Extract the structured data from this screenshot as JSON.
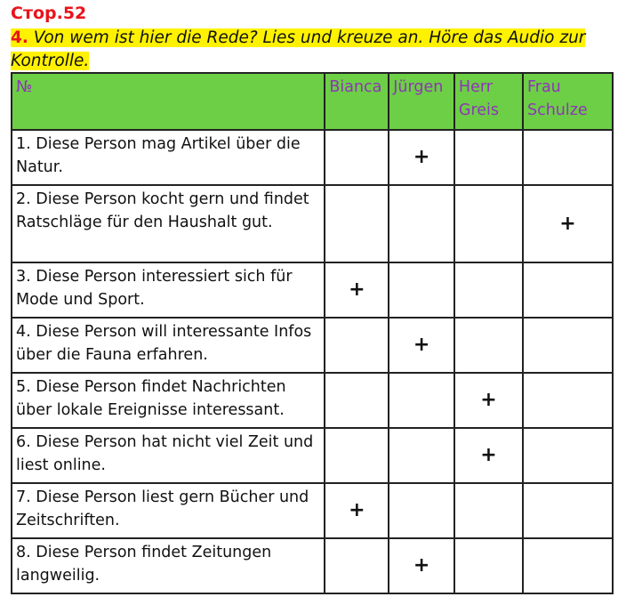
{
  "page_ref": "Стор.52",
  "task": {
    "number": "4.",
    "text": "Von wem ist hier die Rede? Lies und kreuze an. Höre das Audio zur Kontrolle."
  },
  "table": {
    "headers": [
      "№",
      "Bianca",
      "Jürgen",
      "Herr Greis",
      "Frau Schulze"
    ],
    "rows": [
      {
        "text": "1. Diese Person mag Artikel über die Natur.",
        "marks": [
          "",
          "+",
          "",
          ""
        ]
      },
      {
        "text": "2. Diese Person kocht gern und findet Ratschläge für den Haushalt gut.",
        "marks": [
          "",
          "",
          "",
          "+"
        ]
      },
      {
        "text": "3. Diese Person interessiert sich für Mode und Sport.",
        "marks": [
          "+",
          "",
          "",
          ""
        ]
      },
      {
        "text": "4. Diese Person will interessante Infos über die Fauna erfahren.",
        "marks": [
          "",
          "+",
          "",
          ""
        ]
      },
      {
        "text": "5. Diese Person findet Nachrichten über lokale Ereignisse interessant.",
        "marks": [
          "",
          "",
          "+",
          ""
        ]
      },
      {
        "text": "6. Diese Person hat nicht viel Zeit und liest online.",
        "marks": [
          "",
          "",
          "+",
          ""
        ]
      },
      {
        "text": "7. Diese Person liest gern Bücher und Zeitschriften.",
        "marks": [
          "+",
          "",
          "",
          ""
        ]
      },
      {
        "text": "8. Diese Person findet Zeitungen langweilig.",
        "marks": [
          "",
          "+",
          "",
          ""
        ]
      }
    ]
  },
  "colors": {
    "header_bg": "#6ccf45",
    "header_text": "#8e35b8",
    "highlight": "#fff200",
    "accent_red": "#e8141b"
  }
}
